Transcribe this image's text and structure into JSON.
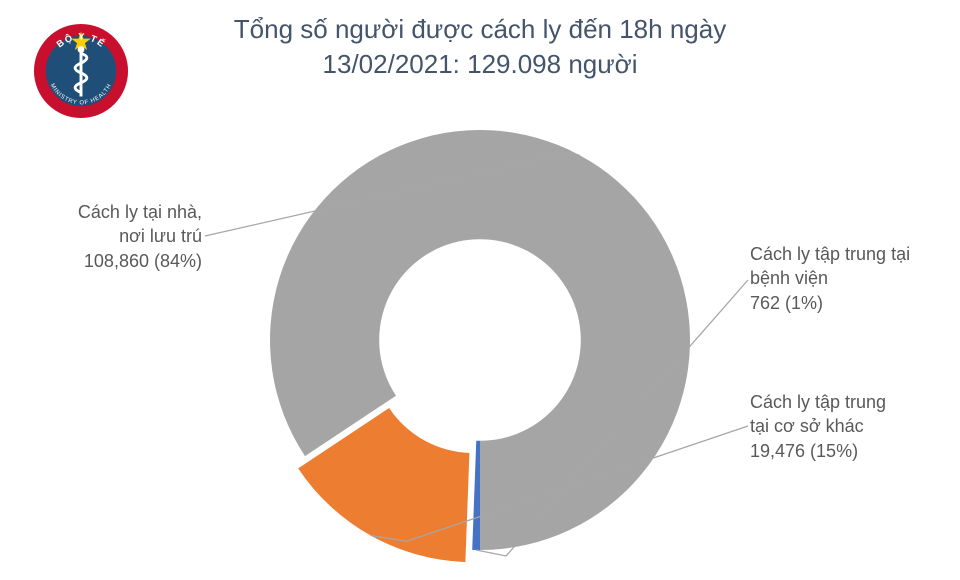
{
  "title_line1": "Tổng số người được cách ly đến 18h ngày",
  "title_line2": "13/02/2021: 129.098 người",
  "title_color": "#44546a",
  "title_fontsize": 26,
  "logo": {
    "ring_text_top": "BỘ Y TẾ",
    "ring_text_bottom": "MINISTRY OF HEALTH",
    "star_color": "#ffcc00",
    "ring_color": "#c8102e",
    "inner_color": "#1f4e79"
  },
  "chart": {
    "type": "donut",
    "inner_radius_ratio": 0.48,
    "outer_radius": 210,
    "start_angle_deg": 90,
    "background_color": "#ffffff",
    "slices": [
      {
        "key": "hospital",
        "label_line1": "Cách ly tập trung tại",
        "label_line2": "bệnh viện",
        "label_line3": "762 (1%)",
        "value": 762,
        "percent": 1,
        "color": "#4472c4",
        "explode": 0
      },
      {
        "key": "other_facility",
        "label_line1": "Cách ly tập trung",
        "label_line2": "tại cơ sở khác",
        "label_line3": "19,476 (15%)",
        "value": 19476,
        "percent": 15,
        "color": "#ed7d31",
        "explode": 14
      },
      {
        "key": "home",
        "label_line1": "Cách ly tại nhà,",
        "label_line2": "nơi lưu trú",
        "label_line3": "108,860 (84%)",
        "value": 108860,
        "percent": 84,
        "color": "#a5a5a5",
        "explode": 0
      }
    ],
    "label_color": "#595959",
    "label_fontsize": 18,
    "leader_color": "#a6a6a6"
  }
}
